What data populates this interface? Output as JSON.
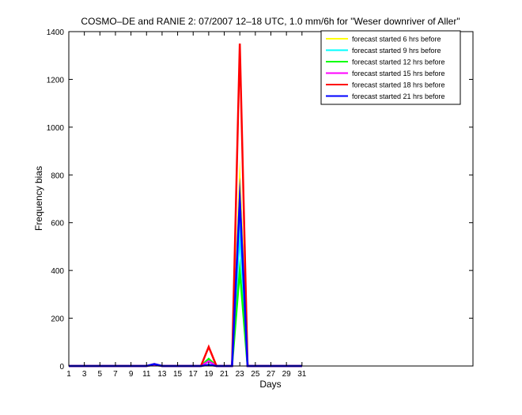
{
  "chart_data": {
    "type": "line",
    "title": "COSMO–DE and RANIE 2: 07/2007 12–18 UTC, 1.0 mm/6h for \"Weser downriver of Aller\"",
    "xlabel": "Days",
    "ylabel": "Frequency bias",
    "xlim": [
      1,
      53
    ],
    "ylim": [
      0,
      1400
    ],
    "x_ticks": [
      1,
      3,
      5,
      7,
      9,
      11,
      13,
      15,
      17,
      19,
      21,
      23,
      25,
      27,
      29,
      31
    ],
    "y_ticks": [
      0,
      200,
      400,
      600,
      800,
      1000,
      1200,
      1400
    ],
    "legend_position": "top-right",
    "grid": false,
    "x": [
      1,
      2,
      3,
      4,
      5,
      6,
      7,
      8,
      9,
      10,
      11,
      12,
      13,
      14,
      15,
      16,
      17,
      18,
      19,
      20,
      21,
      22,
      23,
      24,
      25,
      26,
      27,
      28,
      29,
      30,
      31
    ],
    "series": [
      {
        "name": "forecast started 6 hrs before",
        "color": "#ffff00",
        "values": [
          0,
          0,
          0,
          0,
          0,
          0,
          0,
          0,
          0,
          0,
          0,
          5,
          0,
          0,
          0,
          0,
          0,
          0,
          25,
          0,
          0,
          0,
          770,
          0,
          0,
          0,
          0,
          0,
          0,
          0,
          0
        ]
      },
      {
        "name": "forecast started 9 hrs before",
        "color": "#00ffff",
        "values": [
          0,
          0,
          0,
          0,
          0,
          0,
          0,
          0,
          0,
          0,
          0,
          5,
          0,
          0,
          0,
          0,
          0,
          0,
          20,
          0,
          0,
          0,
          560,
          0,
          0,
          0,
          0,
          0,
          0,
          0,
          0
        ]
      },
      {
        "name": "forecast started 12 hrs before",
        "color": "#00ff00",
        "values": [
          0,
          0,
          0,
          0,
          0,
          0,
          0,
          0,
          0,
          0,
          0,
          5,
          0,
          0,
          0,
          0,
          0,
          0,
          30,
          0,
          0,
          0,
          400,
          0,
          0,
          0,
          0,
          0,
          0,
          0,
          0
        ]
      },
      {
        "name": "forecast started 15 hrs before",
        "color": "#ff00ff",
        "values": [
          0,
          0,
          0,
          0,
          0,
          0,
          0,
          0,
          0,
          0,
          0,
          5,
          0,
          0,
          0,
          0,
          0,
          0,
          20,
          0,
          0,
          0,
          700,
          0,
          0,
          0,
          0,
          0,
          0,
          0,
          0
        ]
      },
      {
        "name": "forecast started 18 hrs before",
        "color": "#ff0000",
        "values": [
          0,
          0,
          0,
          0,
          0,
          0,
          0,
          0,
          0,
          0,
          0,
          8,
          0,
          0,
          0,
          0,
          0,
          0,
          80,
          0,
          0,
          0,
          1350,
          0,
          0,
          0,
          0,
          0,
          0,
          0,
          0
        ]
      },
      {
        "name": "forecast started 21 hrs before",
        "color": "#0000ff",
        "values": [
          0,
          0,
          0,
          0,
          0,
          0,
          0,
          0,
          0,
          0,
          0,
          8,
          0,
          0,
          0,
          0,
          0,
          0,
          5,
          0,
          0,
          0,
          700,
          0,
          0,
          0,
          0,
          0,
          0,
          0,
          0
        ]
      }
    ]
  }
}
